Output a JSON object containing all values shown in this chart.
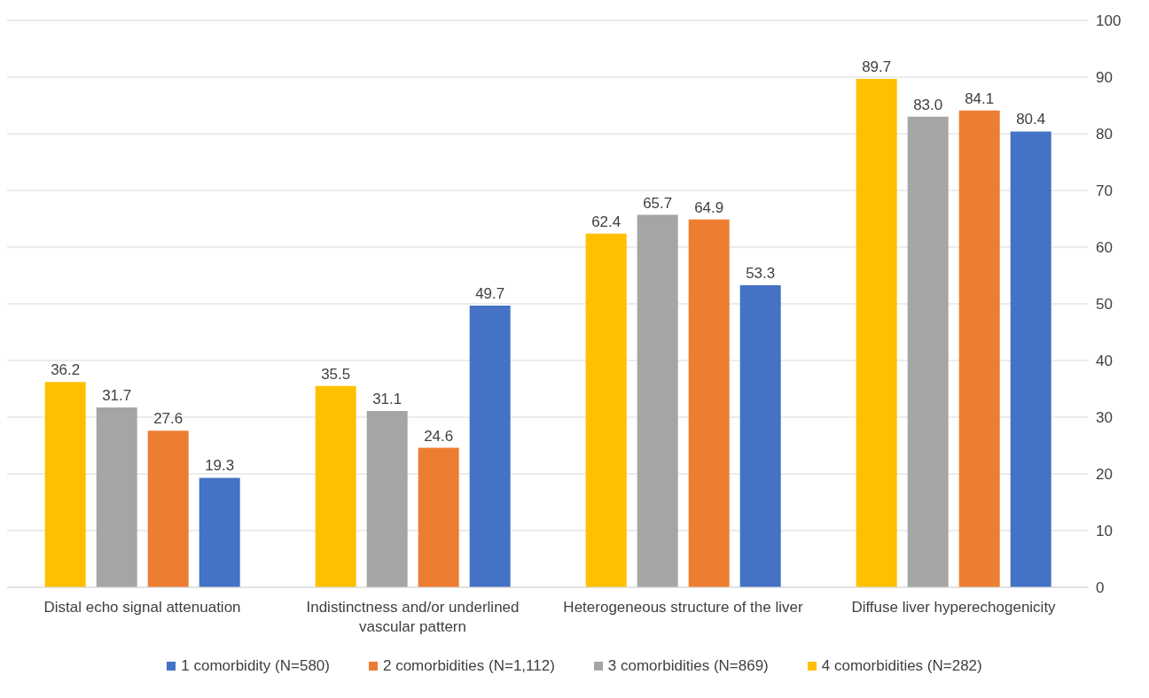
{
  "chart_data": {
    "type": "bar",
    "categories": [
      "Distal echo signal attenuation",
      "Indistinctness and/or underlined vascular pattern",
      "Heterogeneous structure of the liver",
      "Diffuse liver hyperechogenicity"
    ],
    "series": [
      {
        "name": "1 comorbidity (N=580)",
        "color": "#4472c4",
        "values": [
          19.3,
          49.7,
          53.3,
          80.4
        ],
        "value_labels": [
          "19.3",
          "49.7",
          "53.3",
          "80.4"
        ]
      },
      {
        "name": "2 comorbidities (N=1,112)",
        "color": "#ed7d31",
        "values": [
          27.6,
          24.6,
          64.9,
          84.1
        ],
        "value_labels": [
          "27.6",
          "24.6",
          "64.9",
          "84.1"
        ]
      },
      {
        "name": "3 comorbidities (N=869)",
        "color": "#a5a5a5",
        "values": [
          31.7,
          31.1,
          65.7,
          83.0
        ],
        "value_labels": [
          "31.7",
          "31.1",
          "65.7",
          "83.0"
        ]
      },
      {
        "name": "4 comorbidities (N=282)",
        "color": "#ffc000",
        "values": [
          36.2,
          35.5,
          62.4,
          89.7
        ],
        "value_labels": [
          "36.2",
          "35.5",
          "62.4",
          "89.7"
        ]
      }
    ],
    "ylim": [
      0,
      100
    ],
    "yticks": [
      0,
      10,
      20,
      30,
      40,
      50,
      60,
      70,
      80,
      90,
      100
    ],
    "grid": "y",
    "legend": "bottom"
  }
}
